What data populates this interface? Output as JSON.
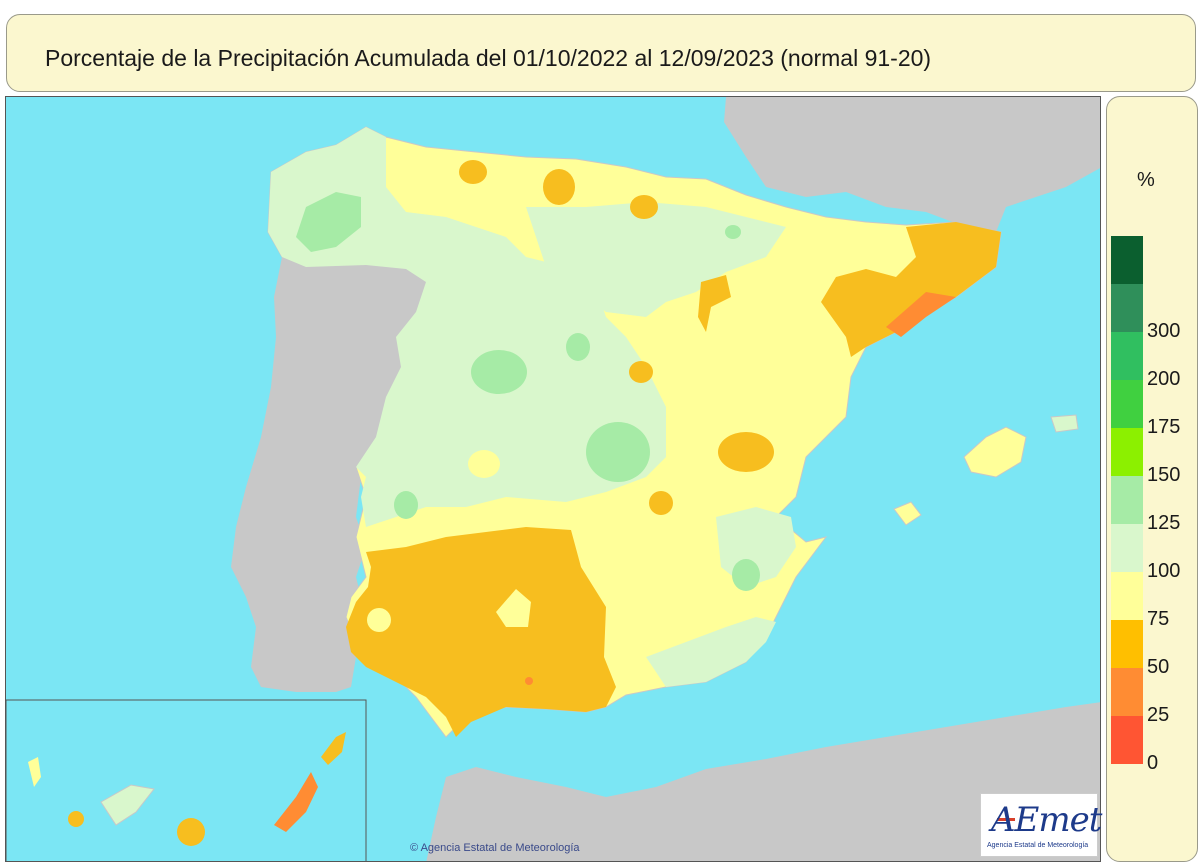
{
  "title": "Porcentaje de la Precipitación Acumulada del 01/10/2022 al 12/09/2023 (normal 91-20)",
  "legend": {
    "unit": "%",
    "colors": [
      "#ff5533",
      "#ff8c33",
      "#ffbf00",
      "#ffff99",
      "#d9f7cc",
      "#a6eba6",
      "#8cf000",
      "#40d040",
      "#30bf60",
      "#2f8f5a",
      "#0b5f2f"
    ],
    "labels": [
      "0",
      "25",
      "50",
      "75",
      "100",
      "125",
      "150",
      "175",
      "200",
      "300"
    ]
  },
  "copyright": "Agencia Estatal de Meteorología",
  "logo": {
    "text": "AEmet",
    "subtitle": "Agencia Estatal de Meteorología"
  },
  "map_colors": {
    "sea": "#7be6f4",
    "foreign_land": "#c8c8c8",
    "land_100_125": "#d9f7cc",
    "land_125_150": "#a6eba6",
    "land_150_175": "#7fe07f",
    "land_75_100": "#ffff99",
    "land_50_75": "#f7be1f",
    "land_25_50": "#ff8c33",
    "border": "#c8c8c8"
  }
}
